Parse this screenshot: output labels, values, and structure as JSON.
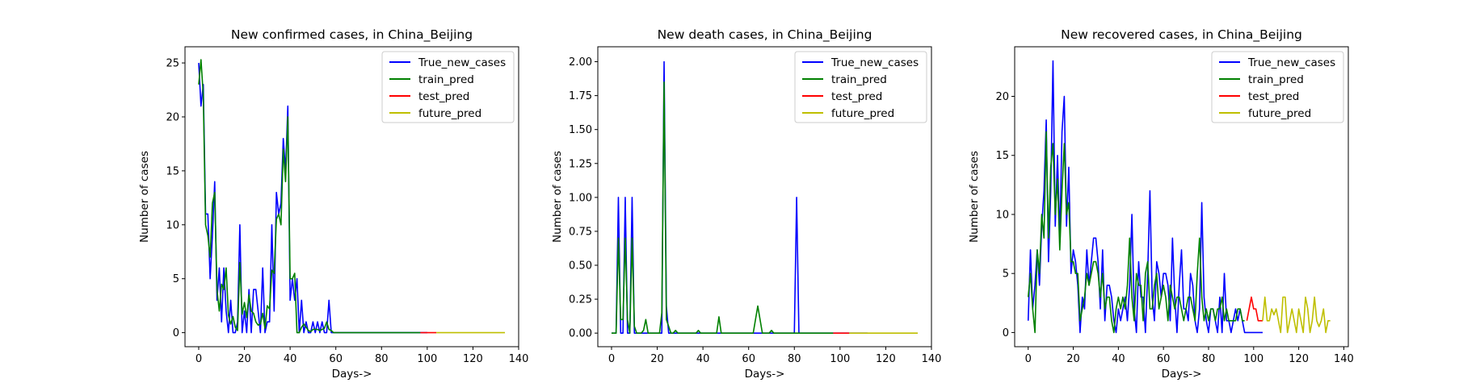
{
  "chart_data": [
    {
      "type": "line",
      "title": "New confirmed cases, in China_Beijing",
      "xlabel": "Days->",
      "ylabel": "Number of cases",
      "xlim": [
        -6,
        140
      ],
      "ylim": [
        -1.3,
        26.5
      ],
      "xticks": [
        0,
        20,
        40,
        60,
        80,
        100,
        120,
        140
      ],
      "yticks": [
        0,
        5,
        10,
        15,
        20,
        25
      ],
      "legend_position": "top-right",
      "series": [
        {
          "name": "True_new_cases",
          "color": "#0000ff",
          "x_start": 0,
          "values": [
            25,
            21,
            23,
            11,
            11,
            5,
            9,
            14,
            3,
            6,
            1,
            6,
            2,
            0,
            3,
            0,
            0,
            1,
            10,
            0,
            2,
            0,
            4,
            0,
            4,
            4,
            2,
            0,
            6,
            0,
            1,
            1,
            10,
            2,
            13,
            11,
            12,
            18,
            15,
            21,
            3,
            5,
            3,
            5,
            0,
            3,
            0,
            1,
            0,
            0,
            1,
            0,
            1,
            0,
            1,
            0,
            0,
            3,
            0,
            0,
            0,
            0,
            0,
            0,
            0,
            0,
            0,
            0,
            0,
            0,
            0,
            0,
            0,
            0,
            0,
            0,
            0,
            0,
            0,
            0,
            0,
            0,
            0,
            0,
            0,
            0,
            0,
            0,
            0,
            0,
            0,
            0,
            0,
            0,
            0,
            0,
            0,
            0,
            0,
            0,
            0
          ]
        },
        {
          "name": "train_pred",
          "color": "#008000",
          "x_start": 0,
          "values": [
            23,
            25.3,
            22,
            10,
            9,
            7,
            12,
            13,
            4,
            2,
            4.5,
            4,
            6,
            1.6,
            0.8,
            1.5,
            0.5,
            0.2,
            6.5,
            1.7,
            2.8,
            1.4,
            3.5,
            2,
            1.8,
            1,
            0.7,
            0.8,
            1.8,
            0.4,
            2.5,
            2.2,
            5.8,
            5.5,
            10.5,
            11,
            10,
            17,
            14,
            20,
            5,
            5,
            5.5,
            0,
            0,
            0.5,
            0.8,
            0.5,
            0.2,
            0.1,
            0.3,
            0.3,
            0.3,
            0.2,
            0.3,
            0.4,
            1,
            0.3,
            0.2,
            0,
            0,
            0,
            0,
            0,
            0,
            0,
            0,
            0,
            0,
            0,
            0,
            0,
            0,
            0,
            0,
            0,
            0,
            0,
            0,
            0,
            0,
            0,
            0,
            0,
            0,
            0,
            0,
            0,
            0,
            0,
            0,
            0,
            0,
            0,
            0,
            0,
            0,
            0
          ]
        },
        {
          "name": "test_pred",
          "color": "#ff0000",
          "x_start": 97,
          "values": [
            0,
            0,
            0,
            0,
            0,
            0,
            0,
            0
          ]
        },
        {
          "name": "future_pred",
          "color": "#bfbf00",
          "x_start": 104,
          "values": [
            0,
            0,
            0,
            0,
            0,
            0,
            0,
            0,
            0,
            0,
            0,
            0,
            0,
            0,
            0,
            0,
            0,
            0,
            0,
            0,
            0,
            0,
            0,
            0,
            0,
            0,
            0,
            0,
            0,
            0,
            0
          ]
        }
      ]
    },
    {
      "type": "line",
      "title": "New death cases, in China_Beijing",
      "xlabel": "Days->",
      "ylabel": "Number of cases",
      "xlim": [
        -6,
        140
      ],
      "ylim": [
        -0.1,
        2.11
      ],
      "xticks": [
        0,
        20,
        40,
        60,
        80,
        100,
        120,
        140
      ],
      "yticks": [
        0.0,
        0.25,
        0.5,
        0.75,
        1.0,
        1.25,
        1.5,
        1.75,
        2.0
      ],
      "legend_position": "top-right",
      "series": [
        {
          "name": "True_new_cases",
          "color": "#0000ff",
          "x_start": 0,
          "values": [
            0,
            0,
            0,
            1,
            0,
            0,
            1,
            0,
            0,
            1,
            0,
            0,
            0,
            0,
            0,
            0,
            0,
            0,
            0,
            0,
            0,
            0,
            0,
            2,
            0.2,
            0,
            0,
            0,
            0,
            0,
            0,
            0,
            0,
            0,
            0,
            0,
            0,
            0,
            0,
            0,
            0,
            0,
            0,
            0,
            0,
            0,
            0,
            0,
            0,
            0,
            0,
            0,
            0,
            0,
            0,
            0,
            0,
            0,
            0,
            0,
            0,
            0,
            0,
            0,
            0,
            0,
            0,
            0,
            0,
            0,
            0,
            0,
            0,
            0,
            0,
            0,
            0,
            0,
            0,
            0,
            0,
            1,
            0,
            0,
            0,
            0,
            0,
            0,
            0,
            0,
            0,
            0,
            0,
            0,
            0,
            0,
            0,
            0,
            0,
            0,
            0,
            0,
            0,
            0,
            0,
            0,
            0,
            0,
            0,
            0,
            0,
            0,
            0
          ]
        },
        {
          "name": "train_pred",
          "color": "#008000",
          "x_start": 0,
          "values": [
            0,
            0,
            0,
            0.7,
            0.1,
            0.1,
            0.7,
            0.1,
            0,
            0.7,
            0.05,
            0,
            0,
            0,
            0.02,
            0.1,
            0,
            0,
            0,
            0,
            0,
            0,
            0.15,
            1.85,
            0.1,
            0.05,
            0,
            0,
            0.02,
            0,
            0,
            0,
            0,
            0,
            0,
            0,
            0,
            0,
            0.02,
            0,
            0,
            0,
            0,
            0,
            0,
            0,
            0,
            0.12,
            0,
            0,
            0,
            0,
            0,
            0,
            0,
            0,
            0,
            0,
            0,
            0,
            0,
            0,
            0,
            0.1,
            0.2,
            0.1,
            0,
            0,
            0,
            0,
            0.02,
            0,
            0,
            0,
            0,
            0,
            0,
            0,
            0,
            0,
            0,
            0,
            0,
            0,
            0,
            0,
            0,
            0,
            0,
            0,
            0,
            0,
            0,
            0,
            0,
            0,
            0,
            0
          ]
        },
        {
          "name": "test_pred",
          "color": "#ff0000",
          "x_start": 97,
          "values": [
            0,
            0,
            0,
            0,
            0,
            0,
            0,
            0
          ]
        },
        {
          "name": "future_pred",
          "color": "#bfbf00",
          "x_start": 104,
          "values": [
            0,
            0,
            0,
            0,
            0,
            0,
            0,
            0,
            0,
            0,
            0,
            0,
            0,
            0,
            0,
            0,
            0,
            0,
            0,
            0,
            0,
            0,
            0,
            0,
            0,
            0,
            0,
            0,
            0,
            0,
            0
          ]
        }
      ]
    },
    {
      "type": "line",
      "title": "New recovered cases, in China_Beijing",
      "xlabel": "Days->",
      "ylabel": "Number of cases",
      "xlim": [
        -6,
        142
      ],
      "ylim": [
        -1.2,
        24.2
      ],
      "xticks": [
        0,
        20,
        40,
        60,
        80,
        100,
        120,
        140
      ],
      "yticks": [
        0,
        5,
        10,
        15,
        20
      ],
      "legend_position": "top-right",
      "series": [
        {
          "name": "True_new_cases",
          "color": "#0000ff",
          "x_start": 0,
          "values": [
            1,
            7,
            2,
            4,
            7,
            4,
            9,
            12,
            18,
            6,
            12,
            23,
            9,
            15,
            8,
            17,
            20,
            9,
            14,
            5,
            7,
            6,
            4,
            0,
            3,
            2,
            7,
            4,
            6,
            8,
            8,
            6,
            2,
            7,
            1,
            4,
            4,
            3,
            1,
            0,
            2,
            1,
            2,
            3,
            1,
            4,
            10,
            2,
            0,
            6,
            3,
            3,
            0,
            5,
            12,
            3,
            1,
            6,
            5,
            3,
            5,
            5,
            4,
            1,
            8,
            3,
            0,
            4,
            7,
            2,
            2,
            1,
            5,
            4,
            1,
            0,
            2,
            11,
            3,
            1,
            0,
            2,
            2,
            1,
            0,
            3,
            0,
            5,
            1,
            1,
            0,
            1,
            2,
            1,
            2,
            1,
            0,
            0,
            0,
            0,
            0,
            0,
            0,
            0,
            0
          ]
        },
        {
          "name": "train_pred",
          "color": "#008000",
          "x_start": 0,
          "values": [
            3,
            5,
            2,
            0,
            7,
            5,
            10,
            8,
            17,
            8,
            14,
            16,
            10,
            13,
            7,
            12,
            16,
            10,
            11,
            6,
            6,
            5,
            5,
            1,
            2,
            3,
            5,
            4,
            5,
            6,
            6,
            5,
            3,
            5,
            2,
            3,
            3,
            1,
            0,
            2,
            3,
            2,
            3,
            2,
            4,
            8,
            3,
            1,
            5,
            4,
            4,
            1,
            5,
            6,
            2,
            2,
            4,
            5,
            2,
            3,
            4,
            3,
            1,
            4,
            3,
            2,
            3,
            3,
            2,
            1,
            2,
            3,
            3,
            2,
            1,
            5,
            8,
            3,
            1,
            2,
            1,
            2,
            2,
            1,
            2,
            2,
            3,
            1,
            2,
            1,
            1,
            1,
            1,
            2,
            2,
            1,
            1
          ]
        },
        {
          "name": "test_pred",
          "color": "#ff0000",
          "x_start": 97,
          "values": [
            1,
            2,
            3,
            2,
            2,
            1,
            1,
            1
          ]
        },
        {
          "name": "future_pred",
          "color": "#bfbf00",
          "x_start": 104,
          "values": [
            1,
            3,
            1,
            1,
            2,
            1.5,
            2,
            1,
            0,
            3,
            3,
            0,
            1,
            2,
            1,
            0,
            2,
            1,
            0,
            3,
            2,
            0,
            1,
            3,
            1,
            0.5,
            1,
            2,
            0,
            1,
            1
          ]
        }
      ]
    }
  ]
}
